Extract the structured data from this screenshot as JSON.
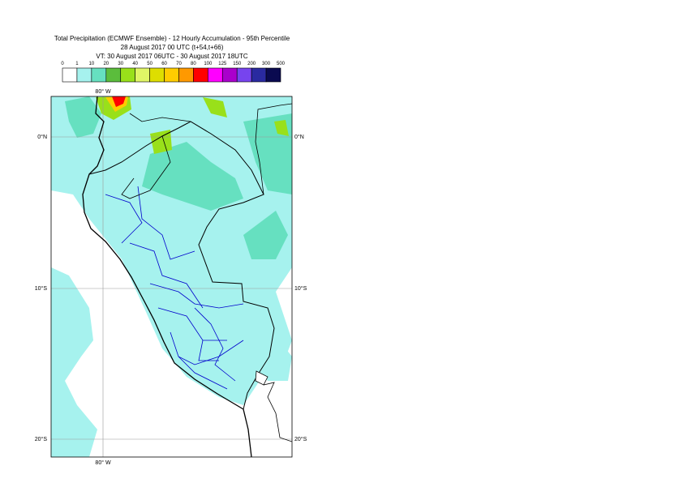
{
  "header": {
    "title": "Total Precipitation (ECMWF Ensemble) - 12 Hourly Accumulation - 95th Percentile",
    "subtitle": "28 August 2017 00 UTC (t+54,t+66)",
    "valid_time": "VT: 30 August 2017 06UTC - 30 August 2017 18UTC"
  },
  "legend": {
    "labels": [
      0,
      1,
      10,
      20,
      30,
      40,
      50,
      60,
      70,
      80,
      100,
      125,
      150,
      200,
      300,
      500
    ],
    "colors": [
      "#ffffff",
      "#a6f2ee",
      "#66e0c0",
      "#5bbd3c",
      "#99e01a",
      "#e0f566",
      "#dede00",
      "#ffcc00",
      "#ff9900",
      "#ff0000",
      "#ff00ff",
      "#aa00cc",
      "#7744ee",
      "#2a2aa0",
      "#0a0a50"
    ]
  },
  "map": {
    "top_labels": [
      "80° W"
    ],
    "bottom_labels": [
      "80° W"
    ],
    "left_labels": [
      "0°N",
      "10°S",
      "20°S"
    ],
    "right_labels": [
      "0°N",
      "10°S",
      "20°S"
    ]
  }
}
